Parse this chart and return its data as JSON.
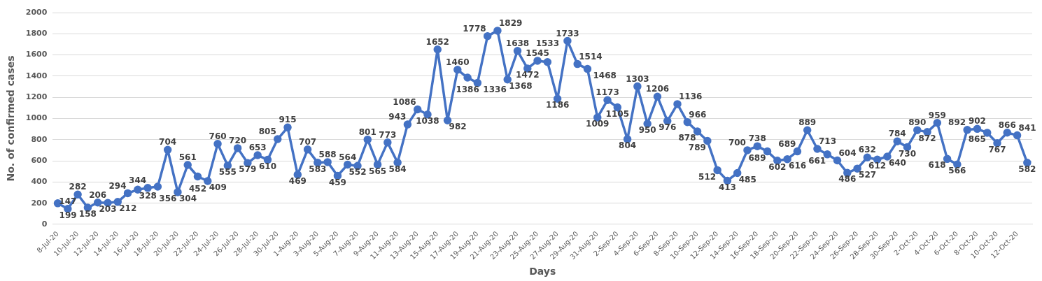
{
  "chart_data": {
    "type": "line",
    "xlabel": "Days",
    "ylabel": "No. of confirmed cases",
    "categories": [
      "8-Jul-20",
      null,
      "10-Jul-20",
      null,
      "12-Jul-20",
      null,
      "14-Jul-20",
      null,
      "16-Jul-20",
      null,
      "18-Jul-20",
      null,
      "20-Jul-20",
      null,
      "22-Jul-20",
      null,
      "24-Jul-20",
      null,
      "26-Jul-20",
      null,
      "28-Jul-20",
      null,
      "30-Jul-20",
      null,
      "1-Aug-20",
      null,
      "3-Aug-20",
      null,
      "5-Aug-20",
      null,
      "7-Aug-20",
      null,
      "9-Aug-20",
      null,
      "11-Aug-20",
      null,
      "13-Aug-20",
      null,
      "15-Aug-20",
      null,
      "17-Aug-20",
      null,
      "19-Aug-20",
      null,
      "21-Aug-20",
      null,
      "23-Aug-20",
      null,
      "25-Aug-20",
      null,
      "27-Aug-20",
      null,
      "29-Aug-20",
      null,
      "31-Aug-20",
      null,
      "2-Sep-20",
      null,
      "4-Sep-20",
      null,
      "6-Sep-20",
      null,
      "8-Sep-20",
      null,
      "10-Sep-20",
      null,
      "12-Sep-20",
      null,
      "14-Sep-20",
      null,
      "16-Sep-20",
      null,
      "18-Sep-20",
      null,
      "20-Sep-20",
      null,
      "22-Sep-20",
      null,
      "24-Sep-20",
      null,
      "26-Sep-20",
      null,
      "28-Sep-20",
      null,
      "30-Sep-20",
      null,
      "2-Oct-20",
      null,
      "4-Oct-20",
      null,
      "6-Oct-20",
      null,
      "8-Oct-20",
      null,
      "10-Oct-20",
      null,
      "12-Oct-20",
      null
    ],
    "series": [
      {
        "color": "#4472c4",
        "values": [
          199,
          147,
          282,
          158,
          206,
          203,
          212,
          294,
          328,
          344,
          356,
          704,
          304,
          561,
          452,
          409,
          760,
          555,
          720,
          579,
          653,
          610,
          805,
          915,
          469,
          707,
          583,
          588,
          459,
          564,
          552,
          801,
          565,
          773,
          584,
          943,
          1086,
          1038,
          1652,
          982,
          1460,
          1386,
          1336,
          1778,
          1829,
          1368,
          1638,
          1472,
          1545,
          1533,
          1186,
          1733,
          1514,
          1468,
          1009,
          1173,
          1105,
          804,
          1303,
          950,
          1206,
          976,
          1136,
          966,
          878,
          789,
          512,
          413,
          485,
          700,
          738,
          689,
          602,
          616,
          689,
          889,
          713,
          661,
          604,
          486,
          527,
          632,
          612,
          640,
          784,
          730,
          890,
          872,
          959,
          618,
          566,
          892,
          902,
          865,
          767,
          866,
          841,
          582
        ]
      }
    ],
    "ylim": [
      0,
      2000
    ],
    "yticks": [
      0,
      200,
      400,
      600,
      800,
      1000,
      1200,
      1400,
      1600,
      1800,
      2000
    ],
    "grid": "y",
    "legend": false,
    "marker": "circle",
    "line_style": "solid",
    "data_labels": true
  }
}
